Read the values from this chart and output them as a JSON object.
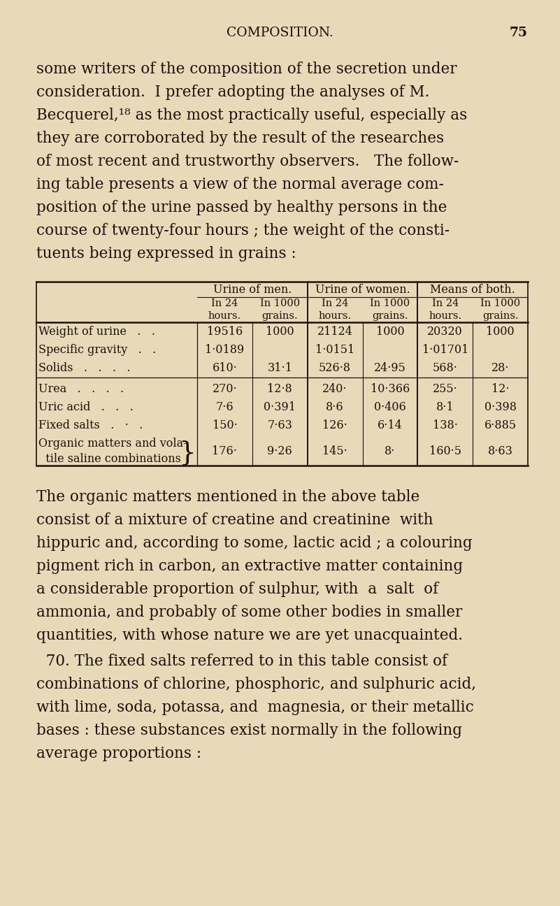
{
  "bg_color": "#e8dab8",
  "text_color": "#1a1008",
  "header_text": "COMPOSITION.",
  "page_number": "75",
  "para1_lines": [
    "some writers of the composition of the secretion under",
    "consideration.  I prefer adopting the analyses of M.",
    "Becquerel,¹⁸ as the most practically useful, especially as",
    "they are corroborated by the result of the researches",
    "of most recent and trustworthy observers.   The follow-",
    "ing table presents a view of the normal average com-",
    "position of the urine passed by healthy persons in the",
    "course of twenty-four hours ; the weight of the consti-",
    "tuents being expressed in grains :"
  ],
  "col_header_1": "Urine of men.",
  "col_header_2": "Urine of women.",
  "col_header_3": "Means of both.",
  "sub_header_1a": "In 24\nhours.",
  "sub_header_1b": "In 1000\ngrains.",
  "sub_header_2a": "In 24\nhours.",
  "sub_header_2b": "In 1000\ngrains.",
  "sub_header_3a": "In 24\nhours.",
  "sub_header_3b": "In 1000\ngrains.",
  "table_data": [
    [
      "Weight of urine   .   .",
      "19516",
      "1000",
      "21124",
      "1000",
      "20320",
      "1000"
    ],
    [
      "Specific gravity   .   .",
      "1·0189",
      "",
      "1·0151",
      "",
      "1·01701",
      ""
    ],
    [
      "Solids   .   .   .   .",
      "610·",
      "31·1",
      "526·8",
      "24·95",
      "568·",
      "28·"
    ],
    [
      "",
      "",
      "",
      "",
      "",
      "",
      ""
    ],
    [
      "Urea   .   .   .   .",
      "270·",
      "12·8",
      "240·",
      "10·366",
      "255·",
      "12·"
    ],
    [
      "Uric acid   .   .   .",
      "7·6",
      "0·391",
      "8·6",
      "0·406",
      "8·1",
      "0·398"
    ],
    [
      "Fixed salts   .   ·   .",
      "150·",
      "7·63",
      "126·",
      "6·14",
      "138·",
      "6·885"
    ],
    [
      "Organic matters and vola-\n  tile saline combinations",
      "176·",
      "9·26",
      "145·",
      "8·",
      "160·5",
      "8·63"
    ]
  ],
  "para2_lines": [
    "The organic matters mentioned in the above table",
    "consist of a mixture of creatine and creatinine  with",
    "hippuric and, according to some, lactic acid ; a colouring",
    "pigment rich in carbon, an extractive matter containing",
    "a considerable proportion of sulphur, with  a  salt  of",
    "ammonia, and probably of some other bodies in smaller",
    "quantities, with whose nature we are yet unacquainted."
  ],
  "para3_lines": [
    "  70. The fixed salts referred to in this table consist of",
    "combinations of chlorine, phosphoric, and sulphuric acid,",
    "with lime, soda, potassa, and  magnesia, or their metallic",
    "bases : these substances exist normally in the following",
    "average proportions :"
  ]
}
